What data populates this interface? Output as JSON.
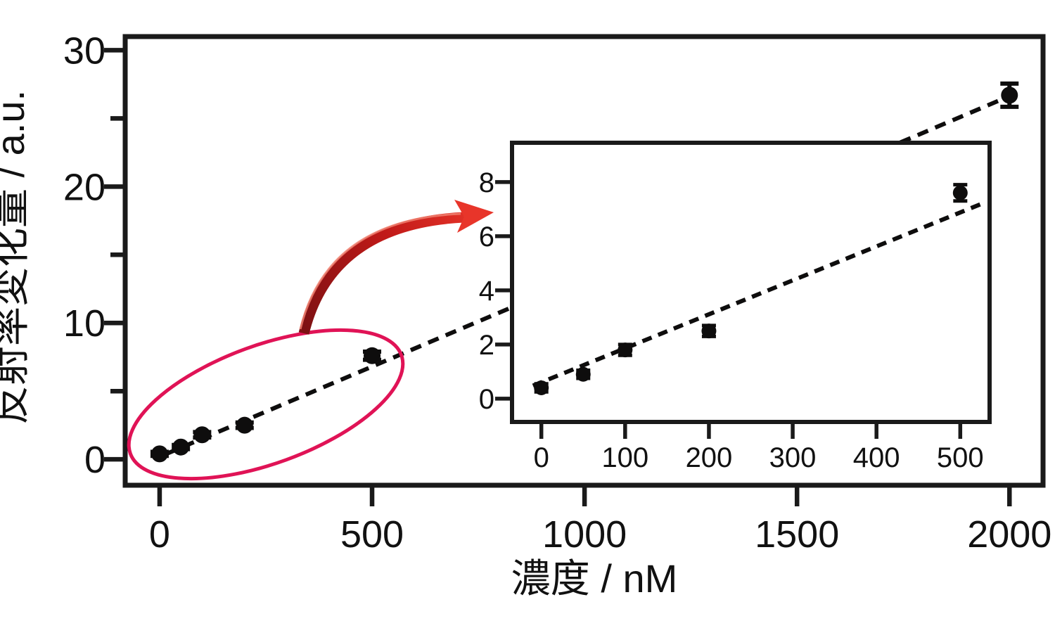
{
  "figure_type": "scatter-plot-with-zoom-inset",
  "chart_data": {
    "type": "scatter",
    "title": "",
    "xlabel": "濃度 / nM",
    "ylabel": "反射率変化量 / a.u.",
    "grid": false,
    "legend": "none",
    "series": [
      {
        "name": "reflectance-change",
        "x": [
          0,
          50,
          100,
          200,
          500,
          2000
        ],
        "y": [
          0.4,
          0.9,
          1.8,
          2.5,
          7.6,
          26.7
        ],
        "yerr": [
          0.15,
          0.15,
          0.2,
          0.2,
          0.3,
          0.85
        ]
      }
    ],
    "views": {
      "main": {
        "xlim": [
          -81,
          2079
        ],
        "ylim": [
          -1.9,
          31
        ],
        "x_ticks": [
          0,
          500,
          1000,
          1500,
          2000
        ],
        "x_tick_labels": [
          "0",
          "500",
          "1000",
          "1500",
          "2000"
        ],
        "y_ticks": [
          0,
          10,
          20,
          30
        ],
        "y_tick_labels": [
          "0",
          "10",
          "20",
          "30"
        ],
        "y_minor_ticks": [
          5,
          15,
          25
        ],
        "point_indices": [
          0,
          1,
          2,
          3,
          4,
          5
        ],
        "trend": {
          "style": "dashed",
          "x_start": 15,
          "y_start": 0.39,
          "x_end": 1990,
          "y_end": 26.5
        }
      },
      "inset": {
        "xlim": [
          -35,
          535
        ],
        "ylim": [
          -0.86,
          9.45
        ],
        "x_ticks": [
          0,
          100,
          200,
          300,
          400,
          500
        ],
        "x_tick_labels": [
          "0",
          "100",
          "200",
          "300",
          "400",
          "500"
        ],
        "y_ticks": [
          0,
          2,
          4,
          6,
          8
        ],
        "y_tick_labels": [
          "0",
          "2",
          "4",
          "6",
          "8"
        ],
        "y_minor_ticks": [],
        "point_indices": [
          0,
          1,
          2,
          3,
          4
        ],
        "trend": {
          "style": "dashed",
          "x_start": -10,
          "y_start": 0.48,
          "x_end": 525,
          "y_end": 7.19
        }
      }
    },
    "annotations": {
      "highlight_ellipse": true,
      "zoom_arrow": true,
      "ellipse_color": "#e01356",
      "arrow_gradient": [
        "#7e1113",
        "#c01a18",
        "#e8352a"
      ],
      "arrow_highlight": "#f08070",
      "marker_color": "#0e0d0d",
      "axis_color": "#1a1a1a"
    }
  }
}
